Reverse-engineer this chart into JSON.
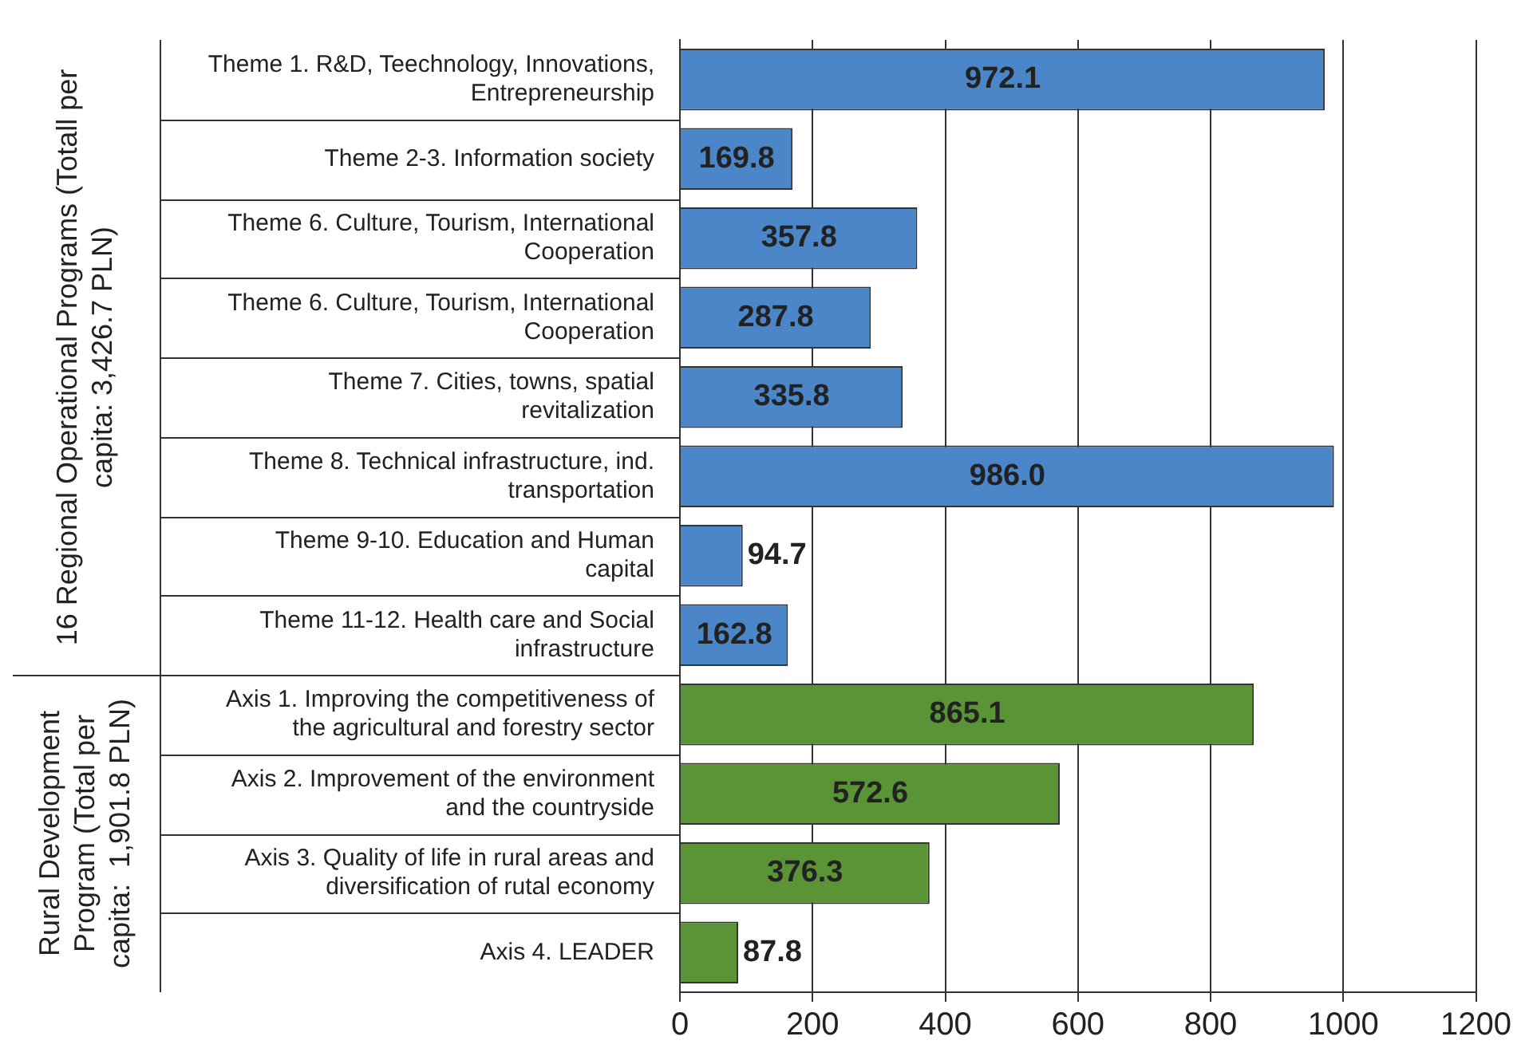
{
  "chart_data": {
    "type": "bar",
    "orientation": "horizontal",
    "categories": [
      "Theme 1. R&D, Teechnology, Innovations, Entrepreneurship",
      "Theme 2-3. Information society",
      "Theme 6. Culture, Tourism, International Cooperation",
      "Theme 6. Culture, Tourism, International Cooperation",
      "Theme 7. Cities, towns, spatial revitalization",
      "Theme 8. Technical infrastructure, ind. transportation",
      "Theme 9-10. Education and Human capital",
      "Theme 11-12. Health care and Social infrastructure",
      "Axis 1. Improving the competitiveness of the agricultural and forestry sector",
      "Axis 2. Improvement of the environment and the countryside",
      "Axis 3. Quality of life in rural areas and diversification of rutal economy",
      "Axis 4. LEADER"
    ],
    "values": [
      972.1,
      169.8,
      357.8,
      287.8,
      335.8,
      986.0,
      94.7,
      162.8,
      865.1,
      572.6,
      376.3,
      87.8
    ],
    "value_labels": [
      "972.1",
      "169.8",
      "357.8",
      "287.8",
      "335.8",
      "986.0",
      "94.7",
      "162.8",
      "865.1",
      "572.6",
      "376.3",
      "87.8"
    ],
    "colors": [
      "#4a86c8",
      "#4a86c8",
      "#4a86c8",
      "#4a86c8",
      "#4a86c8",
      "#4a86c8",
      "#4a86c8",
      "#4a86c8",
      "#5b9436",
      "#5b9436",
      "#5b9436",
      "#5b9436"
    ],
    "xlim": [
      0,
      1200
    ],
    "xticks": [
      0,
      200,
      400,
      600,
      800,
      1000,
      1200
    ],
    "grid": "x",
    "legend": false,
    "annotations": [
      "16 Regional Operational Programs (Totall per capita: 3,426.7 PLN)",
      "Rural Development Program (Total per capita:  1,901.8 PLN)"
    ]
  }
}
